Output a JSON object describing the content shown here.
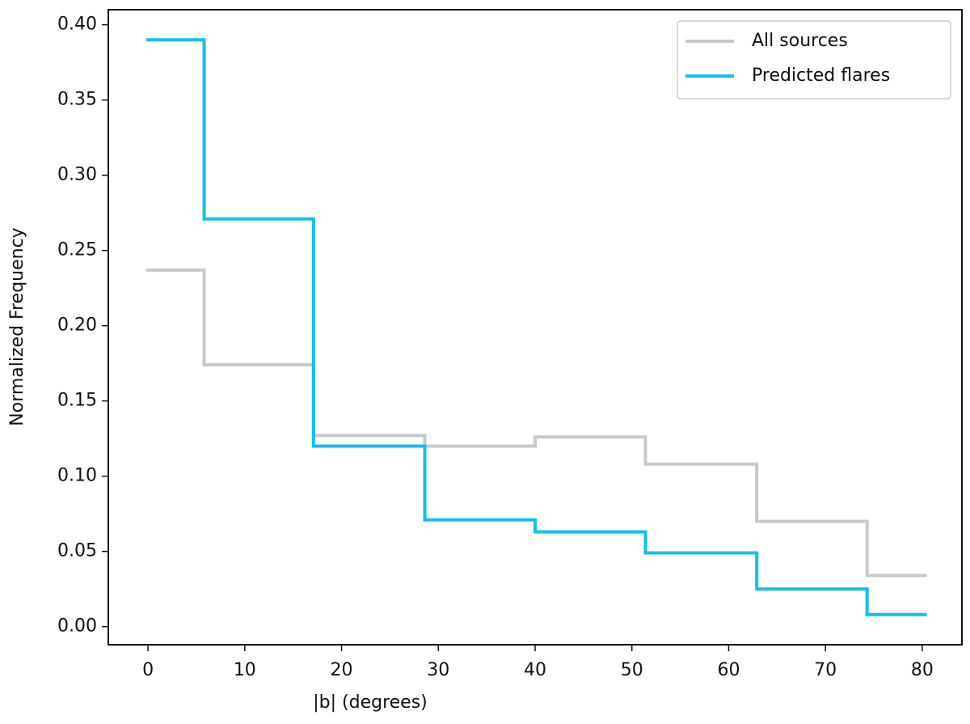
{
  "chart_data": {
    "type": "step-histogram",
    "xlabel": "|b| (degrees)",
    "ylabel": "Normalized Frequency",
    "bins": [
      0,
      5.8,
      17.1,
      28.6,
      40.0,
      51.4,
      62.9,
      74.3,
      80.3
    ],
    "series": [
      {
        "name": "All sources",
        "color": "#c8c8c8",
        "values": [
          0.237,
          0.174,
          0.127,
          0.12,
          0.126,
          0.108,
          0.07,
          0.034
        ]
      },
      {
        "name": "Predicted flares",
        "color": "#12bfea",
        "values": [
          0.39,
          0.271,
          0.12,
          0.071,
          0.063,
          0.049,
          0.025,
          0.008
        ]
      }
    ],
    "xlim": [
      -4.1,
      84.1
    ],
    "ylim": [
      -0.012,
      0.41
    ],
    "xticks": [
      0,
      10,
      20,
      30,
      40,
      50,
      60,
      70,
      80
    ],
    "yticks": [
      {
        "value": 0,
        "label": "0.00"
      },
      {
        "value": 0.05,
        "label": "0.05"
      },
      {
        "value": 0.1,
        "label": "0.10"
      },
      {
        "value": 0.15,
        "label": "0.15"
      },
      {
        "value": 0.2,
        "label": "0.20"
      },
      {
        "value": 0.25,
        "label": "0.25"
      },
      {
        "value": 0.3,
        "label": "0.30"
      },
      {
        "value": 0.35,
        "label": "0.35"
      },
      {
        "value": 0.4,
        "label": "0.40"
      }
    ],
    "legend": "upper right",
    "grid": false
  }
}
